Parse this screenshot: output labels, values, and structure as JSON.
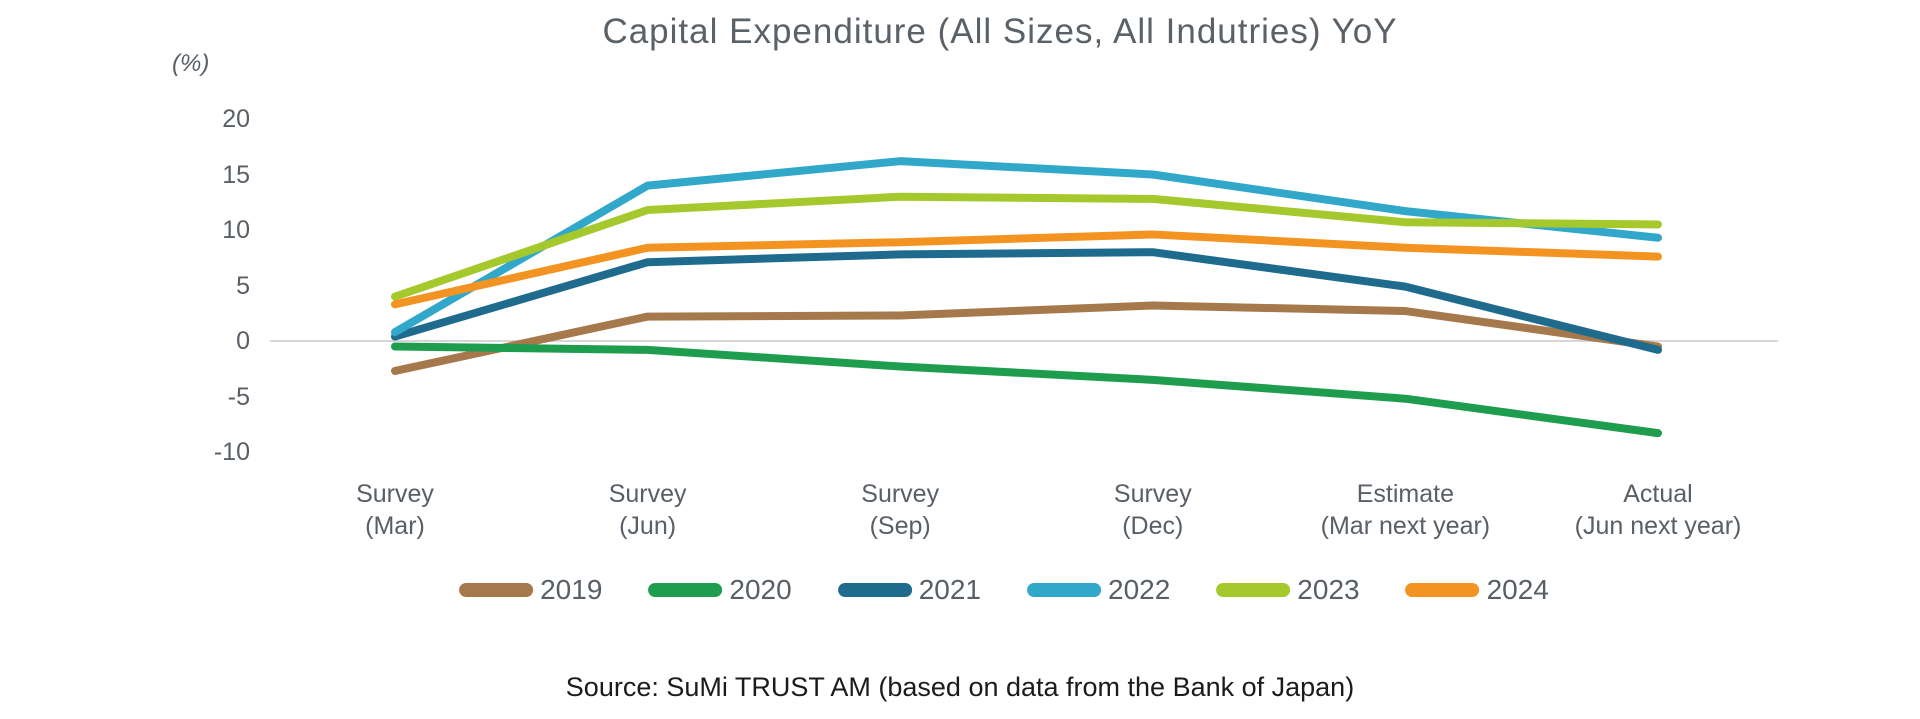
{
  "chart": {
    "title": "Capital Expenditure (All Sizes, All Indutries) YoY",
    "y_unit": "(%)",
    "source": "Source: SuMi TRUST AM (based on data from the Bank of Japan)"
  },
  "chart_data": {
    "type": "line",
    "title": "Capital Expenditure (All Sizes, All Indutries) YoY",
    "xlabel": "",
    "ylabel": "(%)",
    "categories": [
      {
        "top": "Survey",
        "bottom": "(Mar)"
      },
      {
        "top": "Survey",
        "bottom": "(Jun)"
      },
      {
        "top": "Survey",
        "bottom": "(Sep)"
      },
      {
        "top": "Survey",
        "bottom": "(Dec)"
      },
      {
        "top": "Estimate",
        "bottom": "(Mar next year)"
      },
      {
        "top": "Actual",
        "bottom": "(Jun next year)"
      }
    ],
    "yticks": [
      20,
      15,
      10,
      5,
      0,
      -5,
      -10
    ],
    "ylim": [
      -12,
      22
    ],
    "grid": "zero-line-only",
    "zero_line_color": "#d6d6d6",
    "legend_position": "bottom",
    "series": [
      {
        "name": "2019",
        "color": "#a5794b",
        "values": [
          -2.7,
          2.2,
          2.3,
          3.2,
          2.7,
          -0.5
        ]
      },
      {
        "name": "2020",
        "color": "#1f9d4f",
        "values": [
          -0.5,
          -0.8,
          -2.3,
          -3.5,
          -5.2,
          -8.3
        ]
      },
      {
        "name": "2021",
        "color": "#1e6b8e",
        "values": [
          0.4,
          7.1,
          7.8,
          8.0,
          4.9,
          -0.8
        ]
      },
      {
        "name": "2022",
        "color": "#31a8c9",
        "values": [
          0.8,
          14.0,
          16.2,
          15.0,
          11.7,
          9.3
        ]
      },
      {
        "name": "2023",
        "color": "#a5c92d",
        "values": [
          4.0,
          11.8,
          13.0,
          12.8,
          10.7,
          10.5
        ]
      },
      {
        "name": "2024",
        "color": "#f39422",
        "values": [
          3.3,
          8.4,
          8.9,
          9.6,
          8.4,
          7.6
        ]
      }
    ],
    "source": "Source: SuMi TRUST AM (based on data from the Bank of Japan)"
  }
}
